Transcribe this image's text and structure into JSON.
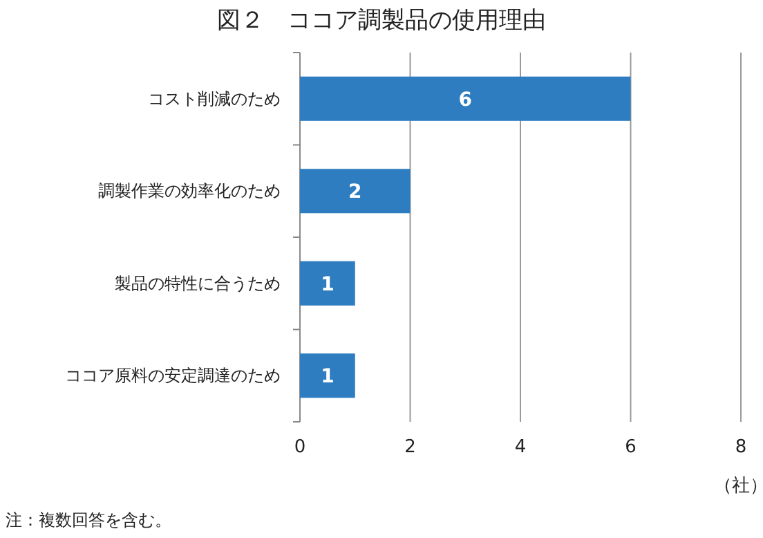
{
  "chart_data": {
    "type": "bar",
    "orientation": "horizontal",
    "title": "図２　ココア調製品の使用理由",
    "categories": [
      "コスト削減のため",
      "調製作業の効率化のため",
      "製品の特性に合うため",
      "ココア原料の安定調達のため"
    ],
    "values": [
      6,
      2,
      1,
      1
    ],
    "color": "#2e7dc0",
    "data_labels": true,
    "xlim": [
      0,
      8
    ],
    "xticks": [
      0,
      2,
      4,
      6,
      8
    ],
    "xlabel": "（社）",
    "grid": "x",
    "annotations": [
      "注：複数回答を含む。"
    ]
  }
}
